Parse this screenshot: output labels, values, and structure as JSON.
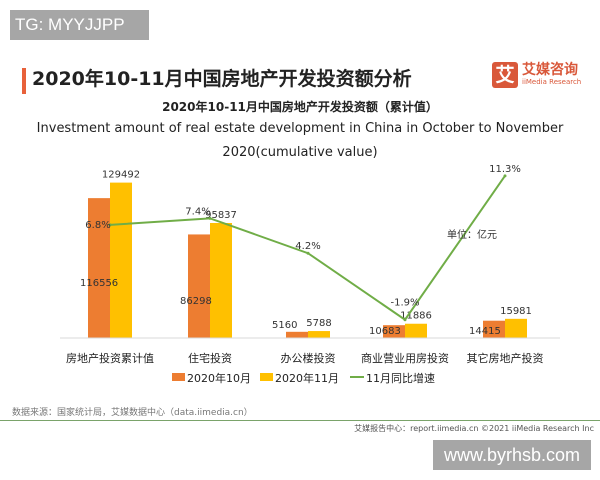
{
  "watermark_top": "TG: MYYJJPP",
  "watermark_bottom": "www.byrhsb.com",
  "page_title": "2020年10-11月中国房地产开发投资额分析",
  "logo": {
    "cn": "艾媒咨询",
    "en": "iiMedia Research",
    "mark": "艾"
  },
  "source": "数据来源：国家统计局，艾媒数据中心（data.iimedia.cn）",
  "footer": "艾媒报告中心：report.iimedia.cn   ©2021  iiMedia Research  Inc",
  "chart_data": {
    "type": "bar",
    "title": "2020年10-11月中国房地产开发投资额（累计值）",
    "subtitle_en_1": "Investment amount of real estate development in China in October to November",
    "subtitle_en_2": "2020(cumulative value)",
    "unit_label": "单位：亿元",
    "categories": [
      "房地产投资累计值",
      "住宅投资",
      "办公楼投资",
      "商业营业用房投资",
      "其它房地产投资"
    ],
    "series": [
      {
        "name": "2020年10月",
        "type": "bar",
        "color": "#ed7d31",
        "values": [
          116556,
          86298,
          5160,
          10683,
          14415
        ]
      },
      {
        "name": "2020年11月",
        "type": "bar",
        "color": "#ffc000",
        "values": [
          129492,
          95837,
          5788,
          11886,
          15981
        ]
      },
      {
        "name": "11月同比增速",
        "type": "line",
        "color": "#70ad47",
        "values": [
          6.8,
          7.4,
          4.2,
          -1.9,
          11.3
        ],
        "labels": [
          "6.8%",
          "7.4%",
          "4.2%",
          "-1.9%",
          "11.3%"
        ]
      }
    ],
    "legend": "bottom",
    "grid": false
  }
}
